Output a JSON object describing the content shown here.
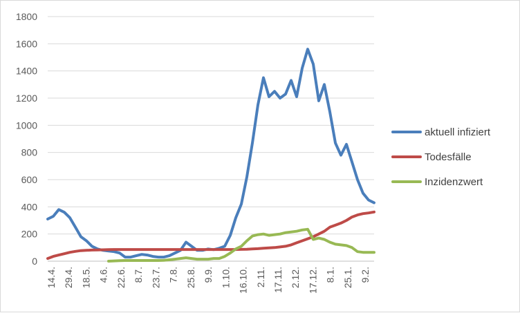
{
  "chart_data": {
    "type": "line",
    "title": "",
    "xlabel": "",
    "ylabel": "",
    "ylim": [
      0,
      1800
    ],
    "yticks": [
      0,
      200,
      400,
      600,
      800,
      1000,
      1200,
      1400,
      1600,
      1800
    ],
    "x_tick_labels": [
      "14.4.",
      "29.4.",
      "18.5.",
      "4.6.",
      "22.6.",
      "8.7.",
      "23.7.",
      "7.8.",
      "25.8.",
      "9.9.",
      "1.10.",
      "16.10.",
      "2.11.",
      "17.11.",
      "2.12.",
      "17.12.",
      "8.1.",
      "25.1.",
      "9.2."
    ],
    "x_count": 60,
    "grid": true,
    "legend_position": "right",
    "series": [
      {
        "name": "aktuell infiziert",
        "color": "#4a7ebb",
        "values": [
          310,
          330,
          380,
          360,
          320,
          250,
          180,
          150,
          110,
          90,
          80,
          75,
          70,
          60,
          30,
          30,
          40,
          50,
          45,
          35,
          30,
          30,
          40,
          60,
          80,
          140,
          110,
          80,
          80,
          90,
          85,
          95,
          110,
          190,
          320,
          420,
          620,
          870,
          1150,
          1350,
          1210,
          1250,
          1200,
          1230,
          1330,
          1210,
          1420,
          1560,
          1450,
          1180,
          1300,
          1100,
          870,
          780,
          860,
          730,
          600,
          500,
          450,
          430
        ]
      },
      {
        "name": "Todesfälle",
        "color": "#be4b48",
        "values": [
          20,
          35,
          45,
          55,
          65,
          72,
          78,
          80,
          82,
          83,
          84,
          85,
          86,
          86,
          86,
          86,
          86,
          86,
          86,
          86,
          86,
          86,
          86,
          86,
          86,
          86,
          86,
          86,
          86,
          86,
          86,
          86,
          86,
          86,
          86,
          87,
          88,
          90,
          92,
          95,
          98,
          100,
          105,
          110,
          120,
          135,
          150,
          165,
          180,
          200,
          220,
          250,
          265,
          280,
          300,
          325,
          340,
          350,
          355,
          362
        ]
      },
      {
        "name": "Inzidenzwert",
        "color": "#98b954",
        "values": [
          null,
          null,
          null,
          null,
          null,
          null,
          null,
          null,
          null,
          null,
          null,
          0,
          2,
          4,
          5,
          5,
          5,
          5,
          5,
          5,
          5,
          6,
          10,
          15,
          20,
          25,
          20,
          15,
          15,
          15,
          20,
          20,
          35,
          60,
          90,
          110,
          150,
          185,
          195,
          200,
          190,
          195,
          200,
          210,
          215,
          220,
          230,
          235,
          160,
          170,
          160,
          140,
          125,
          120,
          115,
          100,
          70,
          65,
          65,
          65
        ]
      }
    ]
  }
}
